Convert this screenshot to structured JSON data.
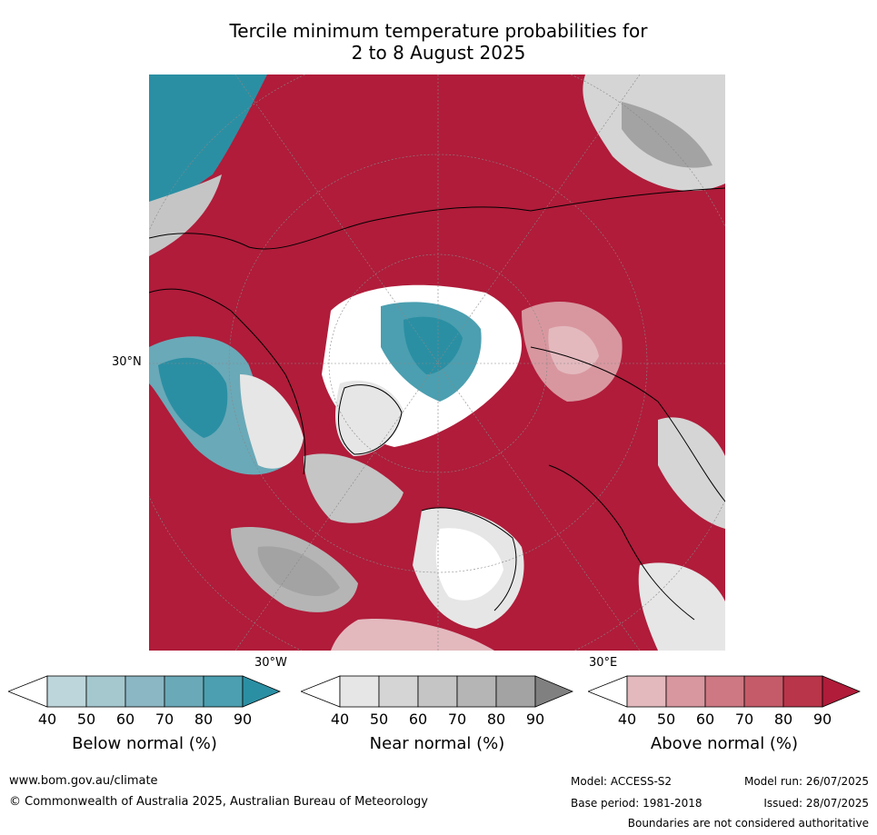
{
  "title": {
    "line1": "Tercile minimum temperature probabilities for",
    "line2": "2 to 8 August 2025"
  },
  "map": {
    "projection": "north-polar-stereographic",
    "lat_label": "30°N",
    "lon_labels": [
      "30°W",
      "30°E"
    ]
  },
  "colorbars": [
    {
      "name": "Below normal (%)",
      "ticks": [
        "40",
        "50",
        "60",
        "70",
        "80",
        "90"
      ],
      "colors": [
        "#ffffff",
        "#bdd6dc",
        "#a5c8cf",
        "#8bb6c3",
        "#6aa9b8",
        "#4b9fb0",
        "#2b8fa3"
      ]
    },
    {
      "name": "Near normal (%)",
      "ticks": [
        "40",
        "50",
        "60",
        "70",
        "80",
        "90"
      ],
      "colors": [
        "#ffffff",
        "#e6e6e6",
        "#d5d5d5",
        "#c5c5c5",
        "#b5b5b5",
        "#a3a3a3",
        "#808080"
      ]
    },
    {
      "name": "Above normal (%)",
      "ticks": [
        "40",
        "50",
        "60",
        "70",
        "80",
        "90"
      ],
      "colors": [
        "#ffffff",
        "#e3b9be",
        "#d8979f",
        "#cd7883",
        "#c55b68",
        "#b93549",
        "#b01c3a"
      ]
    }
  ],
  "footer": {
    "website": "www.bom.gov.au/climate",
    "copyright": "© Commonwealth of Australia 2025, Australian Bureau of Meteorology",
    "model": "Model: ACCESS-S2",
    "model_run": "Model run: 26/07/2025",
    "base_period": "Base period: 1981-2018",
    "issued": "Issued: 28/07/2025",
    "disclaimer": "Boundaries are not considered authoritative"
  }
}
